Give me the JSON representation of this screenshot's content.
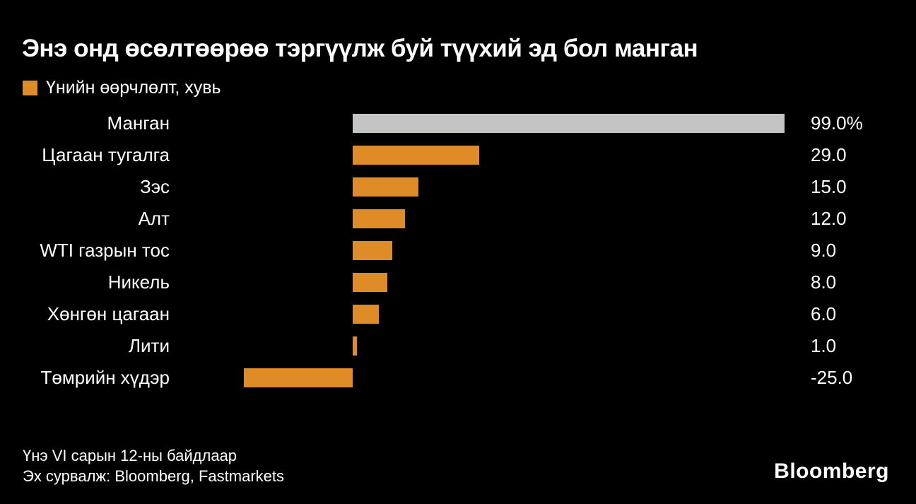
{
  "title": "Энэ онд өсөлтөөрөө тэргүүлж буй түүхий эд бол манган",
  "legend": {
    "label": "Үнийн өөрчлөлт, хувь"
  },
  "colors": {
    "background": "#000000",
    "text": "#FFFFFF",
    "bar_default": "#DE8C28",
    "bar_highlight": "#C4C4C4"
  },
  "chart_data": {
    "type": "bar",
    "orientation": "horizontal",
    "title": "Энэ онд өсөлтөөрөө тэргүүлж буй түүхий эд бол манган",
    "legend_label": "Үнийн өөрчлөлт, хувь",
    "unit": "хувь (percent)",
    "categories": [
      "Манган",
      "Цагаан тугалга",
      "Зэс",
      "Алт",
      "WTI газрын тос",
      "Никель",
      "Хөнгөн цагаан",
      "Лити",
      "Төмрийн хүдэр"
    ],
    "values": [
      99.0,
      29.0,
      15.0,
      12.0,
      9.0,
      8.0,
      6.0,
      1.0,
      -25.0
    ],
    "value_labels": [
      "99.0%",
      "29.0",
      "15.0",
      "12.0",
      "9.0",
      "8.0",
      "6.0",
      "1.0",
      "-25.0"
    ],
    "highlight_index": 0,
    "xlim": [
      -25,
      99
    ],
    "grid": false,
    "legend_position": "top-left"
  },
  "footer": {
    "note": "Үнэ VI сарын 12-ны байдлаар",
    "source": "Эх сурвалж: Bloomberg, Fastmarkets"
  },
  "branding": {
    "logo": "Bloomberg"
  }
}
